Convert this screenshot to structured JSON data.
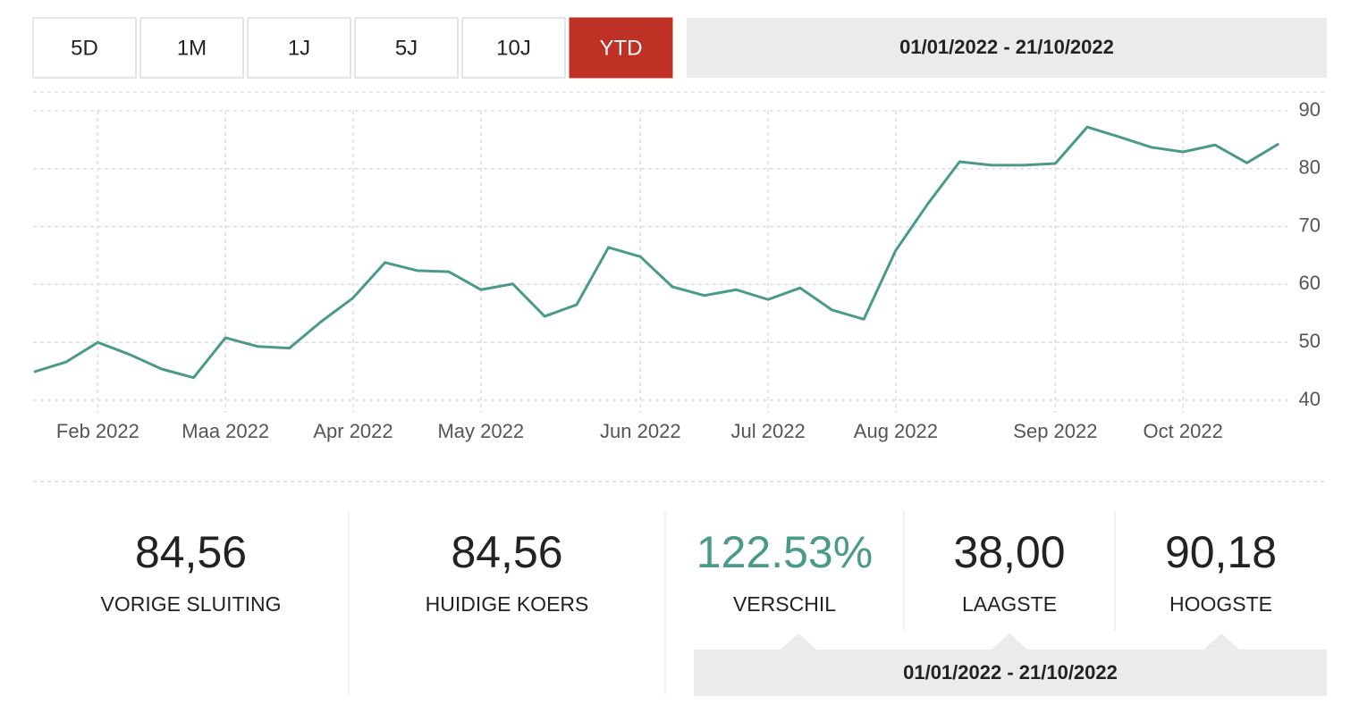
{
  "range_buttons": [
    "5D",
    "1M",
    "1J",
    "5J",
    "10J",
    "YTD"
  ],
  "active_button": 5,
  "date_range": "01/01/2022 - 21/10/2022",
  "chart_data": {
    "type": "line",
    "categories": [
      null,
      null,
      "Feb 2022",
      null,
      null,
      null,
      "Maa 2022",
      null,
      null,
      null,
      "Apr 2022",
      null,
      null,
      null,
      "May 2022",
      null,
      null,
      null,
      null,
      "Jun 2022",
      null,
      null,
      null,
      "Jul 2022",
      null,
      null,
      null,
      "Aug 2022",
      null,
      null,
      null,
      null,
      "Sep 2022",
      null,
      null,
      null,
      "Oct 2022",
      null,
      null,
      null
    ],
    "series": [
      {
        "color": "#4a9a8a",
        "values": [
          44.9,
          46.6,
          50.0,
          47.9,
          45.4,
          43.9,
          50.8,
          49.3,
          49.0,
          53.6,
          57.7,
          63.8,
          62.4,
          62.2,
          59.1,
          60.1,
          54.5,
          56.5,
          66.4,
          64.8,
          59.6,
          58.1,
          59.1,
          57.4,
          59.4,
          55.6,
          54.0,
          65.9,
          73.9,
          81.2,
          80.6,
          80.6,
          80.9,
          87.2,
          85.5,
          83.7,
          82.9,
          84.1,
          81.0,
          84.3
        ]
      }
    ],
    "ylim": [
      40,
      90
    ],
    "yticks": [
      40,
      50,
      60,
      70,
      80,
      90
    ],
    "grid": true
  },
  "stats": [
    {
      "value": "84,56",
      "label": "VORIGE SLUITING"
    },
    {
      "value": "84,56",
      "label": "HUIDIGE KOERS"
    },
    {
      "value": "122.53%",
      "label": "VERSCHIL"
    },
    {
      "value": "38,00",
      "label": "LAAGSTE"
    },
    {
      "value": "90,18",
      "label": "HOOGSTE"
    }
  ],
  "stats_date_range": "01/01/2022 - 21/10/2022"
}
